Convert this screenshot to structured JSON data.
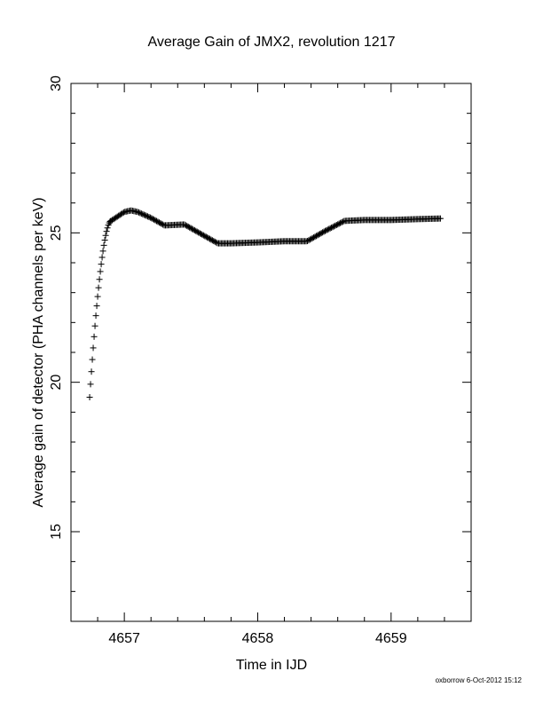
{
  "chart_data": {
    "type": "scatter",
    "title": "Average Gain of JMX2, revolution 1217",
    "xlabel": "Time in IJD",
    "ylabel": "Average gain of detector (PHA channels per keV)",
    "xlim": [
      4656.6,
      4659.6
    ],
    "ylim": [
      12,
      30
    ],
    "x_ticks": [
      4657,
      4658,
      4659
    ],
    "y_ticks": [
      15,
      20,
      25,
      30
    ],
    "grid": false,
    "marker": "+",
    "series": [
      {
        "x": [
          4656.74,
          4657.0,
          4657.05,
          4657.1,
          4657.2,
          4657.3,
          4657.45,
          4657.6,
          4657.7,
          4657.8,
          4658.0,
          4658.2,
          4658.37,
          4658.5,
          4658.65,
          4658.8,
          4659.0,
          4659.2,
          4659.37
        ],
        "y": [
          19.5,
          25.7,
          25.75,
          25.7,
          25.5,
          25.25,
          25.28,
          24.9,
          24.65,
          24.65,
          24.68,
          24.72,
          24.72,
          25.05,
          25.4,
          25.43,
          25.43,
          25.46,
          25.48
        ]
      }
    ]
  },
  "footer": "oxborrow  6-Oct-2012 15:12"
}
